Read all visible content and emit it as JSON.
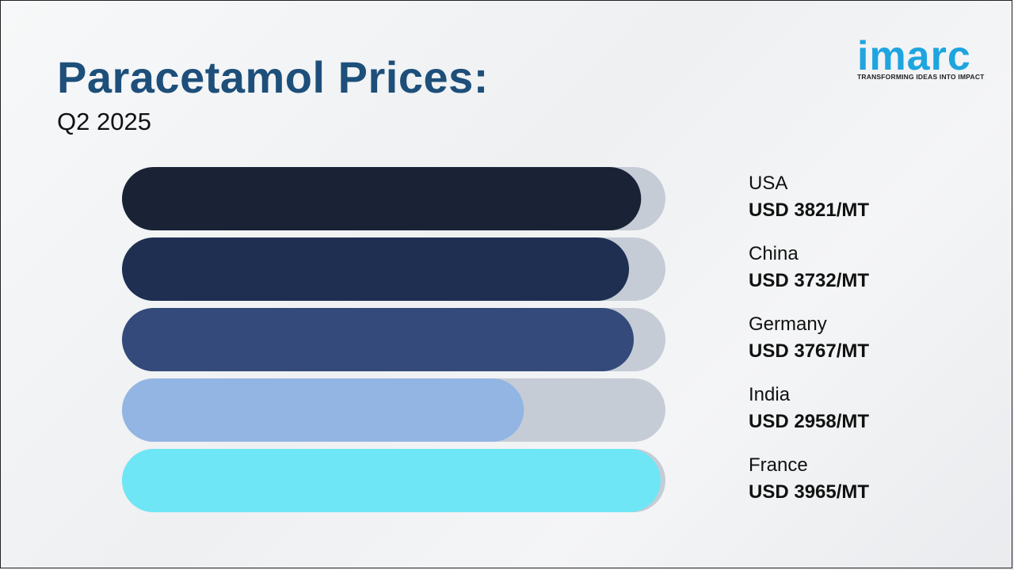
{
  "header": {
    "title": "Paracetamol Prices:",
    "subtitle": "Q2 2025"
  },
  "logo": {
    "word": "imarc",
    "tagline": "TRANSFORMING IDEAS INTO IMPACT",
    "color": "#1ea5e0"
  },
  "chart_data": {
    "type": "bar",
    "orientation": "horizontal",
    "title": "Paracetamol Prices:",
    "subtitle": "Q2 2025",
    "unit": "USD/MT",
    "xlim": [
      0,
      4000
    ],
    "grid": false,
    "categories": [
      "USA",
      "China",
      "Germany",
      "India",
      "France"
    ],
    "values": [
      3821,
      3732,
      3767,
      2958,
      3965
    ],
    "value_labels": [
      "USD 3821/MT",
      "USD 3732/MT",
      "USD 3767/MT",
      "USD 2958/MT",
      "USD 3965/MT"
    ],
    "colors": [
      "#1a2336",
      "#1e2f52",
      "#334a7a",
      "#92b5e3",
      "#6ee6f5"
    ],
    "track_color": "#c5ccd6"
  }
}
